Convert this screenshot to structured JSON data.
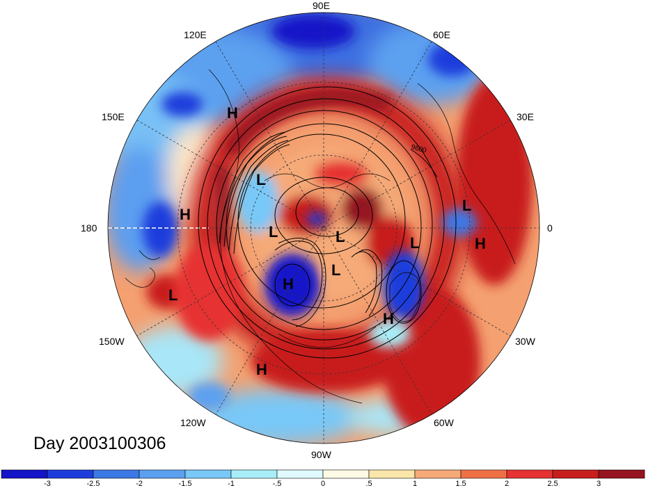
{
  "title": "Day 2003100306",
  "longitude_labels": [
    "90E",
    "60E",
    "30E",
    "0",
    "30W",
    "60W",
    "90W",
    "120W",
    "150W",
    "180",
    "150E",
    "120E"
  ],
  "pressure_systems": [
    {
      "label": "H",
      "region": "eastern Siberia"
    },
    {
      "label": "L",
      "region": "Chukotka"
    },
    {
      "label": "H",
      "region": "north Pacific"
    },
    {
      "label": "L",
      "region": "Arctic Alaska side"
    },
    {
      "label": "L",
      "region": "central Arctic"
    },
    {
      "label": "L",
      "region": "Canadian Arctic"
    },
    {
      "label": "H",
      "region": "northwest Canada"
    },
    {
      "label": "L",
      "region": "Greenland Sea"
    },
    {
      "label": "L",
      "region": "Scandinavia"
    },
    {
      "label": "H",
      "region": "Atlantic near Europe"
    },
    {
      "label": "H",
      "region": "northwest Atlantic"
    },
    {
      "label": "L",
      "region": "central Pacific"
    },
    {
      "label": "H",
      "region": "eastern Pacific"
    }
  ],
  "contour_label": "9600",
  "colorbar": {
    "tick_labels": [
      "-3",
      "-2.5",
      "-2",
      "-1.5",
      "-1",
      "-.5",
      "0",
      ".5",
      "1",
      "1.5",
      "2",
      "2.5",
      "3"
    ],
    "colors": [
      "#1414c8",
      "#1e3cdc",
      "#3c78e6",
      "#5ca0f0",
      "#78c8f8",
      "#a8eef8",
      "#e0faff",
      "#fffae6",
      "#fae6aa",
      "#f5aa78",
      "#f07046",
      "#e63232",
      "#c81e1e",
      "#961420"
    ]
  }
}
